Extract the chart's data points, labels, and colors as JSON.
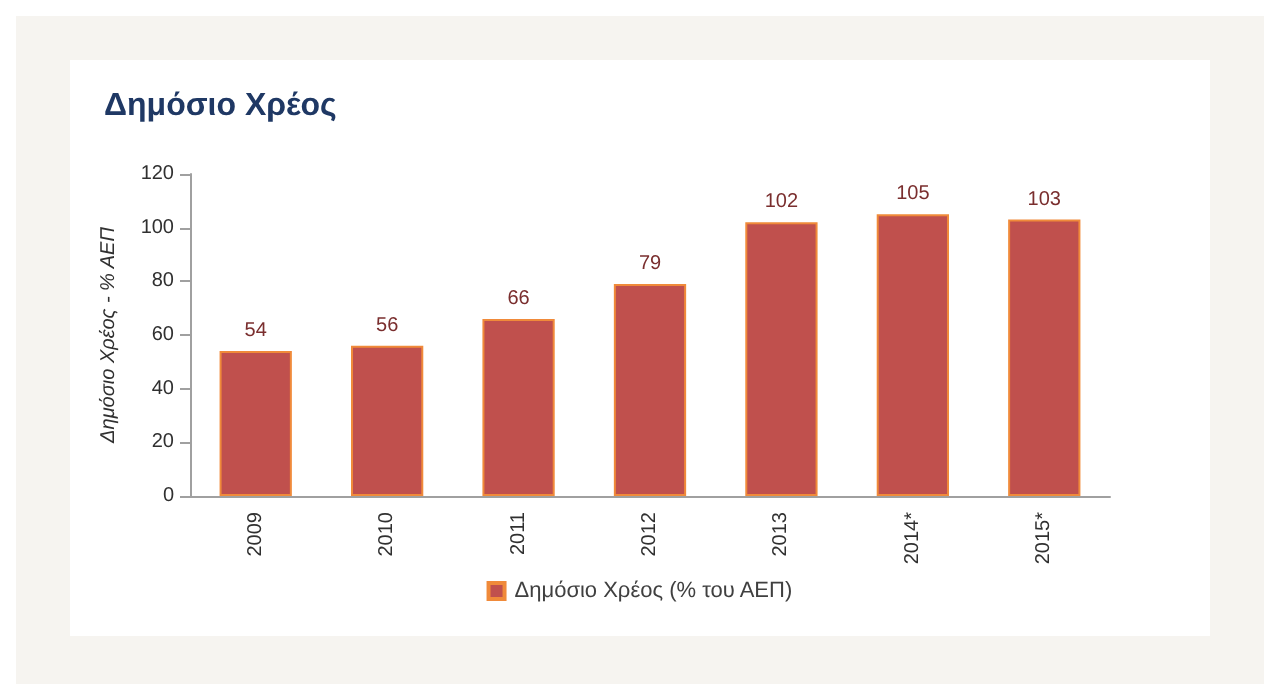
{
  "chart_data": {
    "type": "bar",
    "title": "Δημόσιο Χρέος",
    "ylabel": "Δημόσιο Χρέος - % ΑΕΠ",
    "categories": [
      "2009",
      "2010",
      "2011",
      "2012",
      "2013",
      "2014*",
      "2015*"
    ],
    "series": [
      {
        "name": "Δημόσιο Χρέος (% του ΑΕΠ)",
        "color": "#c0504d",
        "values": [
          54,
          56,
          66,
          79,
          102,
          105,
          103
        ]
      }
    ],
    "ylim": [
      0,
      120
    ],
    "yticks": [
      0,
      20,
      40,
      60,
      80,
      100,
      120
    ],
    "grid": false,
    "legend": "bottom",
    "data_labels": true
  }
}
